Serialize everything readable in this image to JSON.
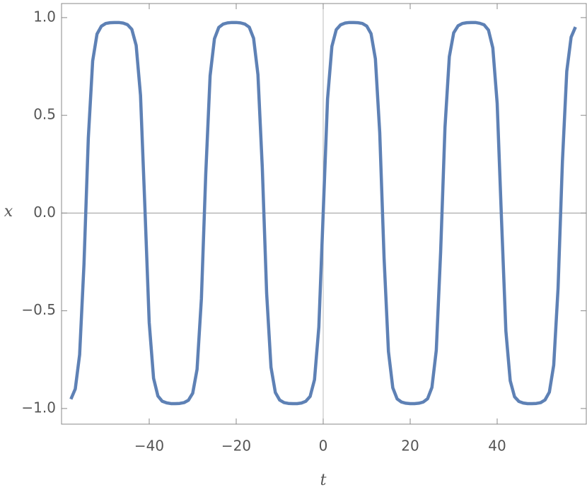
{
  "chart_data": {
    "type": "line",
    "x_label": "t",
    "y_label": "x",
    "x": [
      -58,
      -57,
      -56,
      -55,
      -54,
      -53,
      -52,
      -51,
      -50,
      -49,
      -48,
      -47,
      -46,
      -45,
      -44,
      -43,
      -42,
      -41,
      -40,
      -39,
      -38,
      -37,
      -36,
      -35,
      -34,
      -33,
      -32,
      -31,
      -30,
      -29,
      -28,
      -27,
      -26,
      -25,
      -24,
      -23,
      -22,
      -21,
      -20,
      -19,
      -18,
      -17,
      -16,
      -15,
      -14,
      -13,
      -12,
      -11,
      -10,
      -9,
      -8,
      -7,
      -6,
      -5,
      -4,
      -3,
      -2,
      -1,
      0,
      1,
      2,
      3,
      4,
      5,
      6,
      7,
      8,
      9,
      10,
      11,
      12,
      13,
      14,
      15,
      16,
      17,
      18,
      19,
      20,
      21,
      22,
      23,
      24,
      25,
      26,
      27,
      28,
      29,
      30,
      31,
      32,
      33,
      34,
      35,
      36,
      37,
      38,
      39,
      40,
      41,
      42,
      43,
      44,
      45,
      46,
      47,
      48,
      49,
      50,
      51,
      52,
      53,
      54,
      55,
      56,
      57,
      58
    ],
    "series": [
      {
        "color": "#5e81b5",
        "values": [
          -0.952,
          -0.9,
          -0.725,
          -0.263,
          0.384,
          0.778,
          0.916,
          0.956,
          0.97,
          0.974,
          0.975,
          0.975,
          0.972,
          0.964,
          0.94,
          0.858,
          0.603,
          0.034,
          -0.561,
          -0.845,
          -0.936,
          -0.963,
          -0.971,
          -0.975,
          -0.975,
          -0.974,
          -0.97,
          -0.958,
          -0.922,
          -0.8,
          -0.438,
          0.2,
          0.702,
          0.892,
          0.95,
          0.967,
          0.973,
          0.975,
          0.975,
          0.973,
          0.967,
          0.951,
          0.894,
          0.708,
          0.232,
          -0.411,
          -0.789,
          -0.918,
          -0.957,
          -0.97,
          -0.974,
          -0.975,
          -0.975,
          -0.972,
          -0.963,
          -0.938,
          -0.853,
          -0.583,
          0,
          0.583,
          0.853,
          0.938,
          0.963,
          0.972,
          0.975,
          0.975,
          0.974,
          0.97,
          0.957,
          0.918,
          0.789,
          0.411,
          -0.232,
          -0.708,
          -0.894,
          -0.951,
          -0.967,
          -0.973,
          -0.975,
          -0.975,
          -0.973,
          -0.967,
          -0.95,
          -0.892,
          -0.702,
          -0.2,
          0.438,
          0.8,
          0.922,
          0.958,
          0.97,
          0.974,
          0.975,
          0.975,
          0.971,
          0.963,
          0.936,
          0.845,
          0.561,
          -0.034,
          -0.603,
          -0.858,
          -0.94,
          -0.964,
          -0.972,
          -0.975,
          -0.975,
          -0.974,
          -0.97,
          -0.956,
          -0.916,
          -0.778,
          -0.384,
          0.263,
          0.725,
          0.9,
          0.952
        ]
      }
    ],
    "xlim": [
      -60.16,
      60.49
    ],
    "ylim": [
      -1.08,
      1.072
    ],
    "xticks": [
      {
        "value": -40,
        "label": "−40"
      },
      {
        "value": -20,
        "label": "−20"
      },
      0,
      20,
      40
    ],
    "yticks": [
      {
        "value": -1,
        "label": "−1.0"
      },
      {
        "value": -0.5,
        "label": "−0.5"
      },
      {
        "value": 0,
        "label": "0.0"
      },
      0.5,
      {
        "value": 1,
        "label": "1.0"
      }
    ],
    "axes_at_origin": true
  }
}
